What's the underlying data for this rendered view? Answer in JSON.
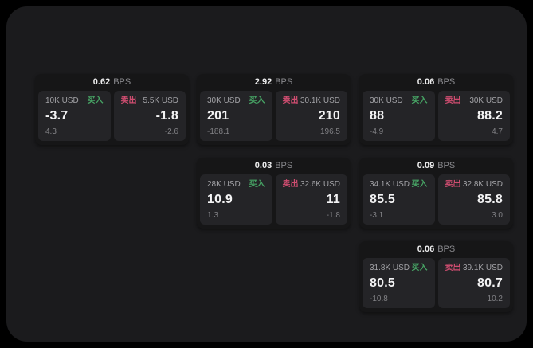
{
  "labels": {
    "buy": "买入",
    "sell": "卖出",
    "bps_unit": "BPS"
  },
  "colors": {
    "page_bg": "#000000",
    "panel_bg": "#1b1b1d",
    "card_bg": "#161617",
    "side_panel_bg": "#242427",
    "buy_green": "#47a465",
    "sell_red": "#cf4d70"
  },
  "cards": [
    {
      "bps": "0.62",
      "buy": {
        "amount": "10K USD",
        "value": "-3.7",
        "delta": "4.3"
      },
      "sell": {
        "amount": "5.5K USD",
        "value": "-1.8",
        "delta": "-2.6"
      }
    },
    {
      "bps": "2.92",
      "buy": {
        "amount": "30K USD",
        "value": "201",
        "delta": "-188.1"
      },
      "sell": {
        "amount": "30.1K USD",
        "value": "210",
        "delta": "196.5"
      }
    },
    {
      "bps": "0.06",
      "buy": {
        "amount": "30K USD",
        "value": "88",
        "delta": "-4.9"
      },
      "sell": {
        "amount": "30K USD",
        "value": "88.2",
        "delta": "4.7"
      }
    },
    {
      "bps": "0.03",
      "buy": {
        "amount": "28K USD",
        "value": "10.9",
        "delta": "1.3"
      },
      "sell": {
        "amount": "32.6K USD",
        "value": "11",
        "delta": "-1.8"
      }
    },
    {
      "bps": "0.09",
      "buy": {
        "amount": "34.1K USD",
        "value": "85.5",
        "delta": "-3.1"
      },
      "sell": {
        "amount": "32.8K USD",
        "value": "85.8",
        "delta": "3.0"
      }
    },
    {
      "bps": "0.06",
      "buy": {
        "amount": "31.8K USD",
        "value": "80.5",
        "delta": "-10.8"
      },
      "sell": {
        "amount": "39.1K USD",
        "value": "80.7",
        "delta": "10.2"
      }
    }
  ]
}
